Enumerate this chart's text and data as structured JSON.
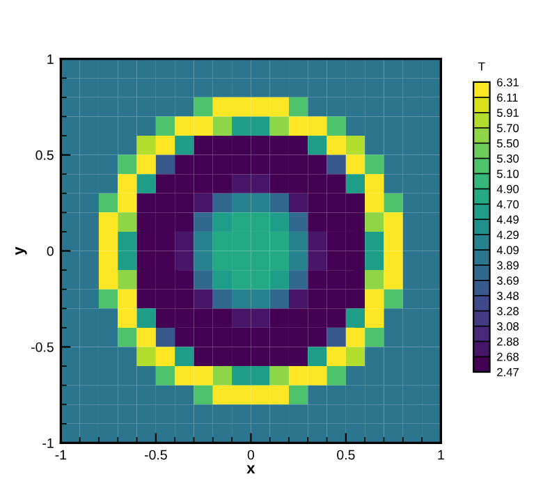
{
  "chart_data": {
    "type": "heatmap",
    "xlabel": "x",
    "ylabel": "y",
    "clabel": "T",
    "x": [
      -0.95,
      -0.85,
      -0.75,
      -0.65,
      -0.55,
      -0.45,
      -0.35,
      -0.25,
      -0.15,
      -0.05,
      0.05,
      0.15,
      0.25,
      0.35,
      0.45,
      0.55,
      0.65,
      0.75,
      0.85,
      0.95
    ],
    "y": [
      0.95,
      0.85,
      0.75,
      0.65,
      0.55,
      0.45,
      0.35,
      0.25,
      0.15,
      0.05,
      -0.05,
      -0.15,
      -0.25,
      -0.35,
      -0.45,
      -0.55,
      -0.65,
      -0.75,
      -0.85,
      -0.95
    ],
    "cells": [
      [
        3.95,
        3.95,
        3.95,
        3.95,
        3.95,
        3.95,
        3.95,
        3.95,
        3.95,
        3.95,
        3.95,
        3.95,
        3.95,
        3.95,
        3.95,
        3.95,
        3.95,
        3.95,
        3.95,
        3.95
      ],
      [
        3.95,
        3.95,
        3.95,
        3.95,
        3.95,
        3.95,
        3.95,
        3.95,
        3.95,
        3.95,
        3.95,
        3.95,
        3.95,
        3.95,
        3.95,
        3.95,
        3.95,
        3.95,
        3.95,
        3.95
      ],
      [
        3.95,
        3.95,
        3.95,
        3.95,
        3.95,
        3.95,
        4.0,
        5.2,
        6.3,
        6.3,
        6.3,
        6.3,
        5.2,
        4.0,
        3.95,
        3.95,
        3.95,
        3.95,
        3.95,
        3.95
      ],
      [
        3.95,
        3.95,
        3.95,
        3.95,
        3.95,
        5.2,
        6.3,
        6.3,
        5.6,
        4.5,
        4.5,
        5.6,
        6.3,
        6.3,
        5.2,
        3.95,
        3.95,
        3.95,
        3.95,
        3.95
      ],
      [
        3.95,
        3.95,
        3.95,
        3.95,
        5.8,
        6.3,
        4.5,
        2.5,
        2.5,
        2.5,
        2.5,
        2.5,
        2.5,
        4.5,
        6.3,
        5.8,
        3.95,
        3.95,
        3.95,
        3.95
      ],
      [
        3.95,
        3.95,
        3.95,
        5.2,
        6.3,
        3.6,
        2.5,
        2.5,
        2.5,
        2.5,
        2.5,
        2.5,
        2.5,
        2.5,
        3.6,
        6.3,
        5.2,
        3.95,
        3.95,
        3.95
      ],
      [
        3.95,
        3.95,
        4.0,
        6.3,
        4.5,
        2.5,
        2.5,
        2.5,
        2.5,
        2.7,
        2.7,
        2.5,
        2.5,
        2.5,
        2.5,
        4.5,
        6.3,
        4.0,
        3.95,
        3.95
      ],
      [
        3.95,
        3.95,
        5.2,
        6.3,
        2.5,
        2.5,
        2.5,
        2.7,
        3.8,
        4.2,
        4.2,
        3.8,
        2.7,
        2.5,
        2.5,
        2.5,
        6.3,
        5.2,
        3.95,
        3.95
      ],
      [
        3.95,
        3.95,
        6.3,
        5.6,
        2.5,
        2.5,
        2.5,
        3.8,
        4.6,
        4.8,
        4.8,
        4.6,
        3.8,
        2.5,
        2.5,
        2.5,
        5.6,
        6.3,
        3.95,
        3.95
      ],
      [
        3.95,
        3.95,
        6.3,
        4.5,
        2.5,
        2.5,
        2.7,
        4.2,
        4.8,
        4.8,
        4.8,
        4.8,
        4.2,
        2.7,
        2.5,
        2.5,
        4.5,
        6.3,
        3.95,
        3.95
      ],
      [
        3.95,
        3.95,
        6.3,
        4.5,
        2.5,
        2.5,
        2.7,
        4.2,
        4.8,
        4.8,
        4.8,
        4.8,
        4.2,
        2.7,
        2.5,
        2.5,
        4.5,
        6.3,
        3.95,
        3.95
      ],
      [
        3.95,
        3.95,
        6.3,
        5.6,
        2.5,
        2.5,
        2.5,
        3.8,
        4.6,
        4.8,
        4.8,
        4.6,
        3.8,
        2.5,
        2.5,
        2.5,
        5.6,
        6.3,
        3.95,
        3.95
      ],
      [
        3.95,
        3.95,
        5.2,
        6.3,
        2.5,
        2.5,
        2.5,
        2.7,
        3.8,
        4.2,
        4.2,
        3.8,
        2.7,
        2.5,
        2.5,
        2.5,
        6.3,
        5.2,
        3.95,
        3.95
      ],
      [
        3.95,
        3.95,
        4.0,
        6.3,
        4.5,
        2.5,
        2.5,
        2.5,
        2.5,
        2.7,
        2.7,
        2.5,
        2.5,
        2.5,
        2.5,
        4.5,
        6.3,
        4.0,
        3.95,
        3.95
      ],
      [
        3.95,
        3.95,
        3.95,
        5.2,
        6.3,
        3.6,
        2.5,
        2.5,
        2.5,
        2.5,
        2.5,
        2.5,
        2.5,
        2.5,
        3.6,
        6.3,
        5.2,
        3.95,
        3.95,
        3.95
      ],
      [
        3.95,
        3.95,
        3.95,
        3.95,
        5.8,
        6.3,
        4.5,
        2.5,
        2.5,
        2.5,
        2.5,
        2.5,
        2.5,
        4.5,
        6.3,
        5.8,
        3.95,
        3.95,
        3.95,
        3.95
      ],
      [
        3.95,
        3.95,
        3.95,
        3.95,
        3.95,
        5.2,
        6.3,
        6.3,
        5.6,
        4.5,
        4.5,
        5.6,
        6.3,
        6.3,
        5.2,
        3.95,
        3.95,
        3.95,
        3.95,
        3.95
      ],
      [
        3.95,
        3.95,
        3.95,
        3.95,
        3.95,
        3.95,
        4.0,
        5.2,
        6.3,
        6.3,
        6.3,
        6.3,
        5.2,
        4.0,
        3.95,
        3.95,
        3.95,
        3.95,
        3.95,
        3.95
      ],
      [
        3.95,
        3.95,
        3.95,
        3.95,
        3.95,
        3.95,
        3.95,
        3.95,
        3.95,
        3.95,
        3.95,
        3.95,
        3.95,
        3.95,
        3.95,
        3.95,
        3.95,
        3.95,
        3.95,
        3.95
      ],
      [
        3.95,
        3.95,
        3.95,
        3.95,
        3.95,
        3.95,
        3.95,
        3.95,
        3.95,
        3.95,
        3.95,
        3.95,
        3.95,
        3.95,
        3.95,
        3.95,
        3.95,
        3.95,
        3.95,
        3.95
      ]
    ],
    "xlim": [
      -1,
      1
    ],
    "ylim": [
      -1,
      1
    ],
    "xticks": [
      -1,
      -0.5,
      0,
      0.5,
      1
    ],
    "yticks": [
      -1,
      -0.5,
      0,
      0.5,
      1
    ],
    "clim": [
      2.47,
      6.31
    ],
    "cticks": [
      {
        "value": 2.47,
        "label": "2.47"
      },
      {
        "value": 2.68,
        "label": "2.68"
      },
      {
        "value": 2.88,
        "label": "2.88"
      },
      {
        "value": 3.08,
        "label": "3.08"
      },
      {
        "value": 3.28,
        "label": "3.28"
      },
      {
        "value": 3.48,
        "label": "3.48"
      },
      {
        "value": 3.69,
        "label": "3.69"
      },
      {
        "value": 3.89,
        "label": "3.89"
      },
      {
        "value": 4.09,
        "label": "4.09"
      },
      {
        "value": 4.29,
        "label": "4.29"
      },
      {
        "value": 4.49,
        "label": "4.49"
      },
      {
        "value": 4.7,
        "label": "4.70"
      },
      {
        "value": 4.9,
        "label": "4.90"
      },
      {
        "value": 5.1,
        "label": "5.10"
      },
      {
        "value": 5.3,
        "label": "5.30"
      },
      {
        "value": 5.5,
        "label": "5.50"
      },
      {
        "value": 5.7,
        "label": "5.70"
      },
      {
        "value": 5.91,
        "label": "5.91"
      },
      {
        "value": 6.11,
        "label": "6.11"
      },
      {
        "value": 6.31,
        "label": "6.31"
      }
    ]
  }
}
